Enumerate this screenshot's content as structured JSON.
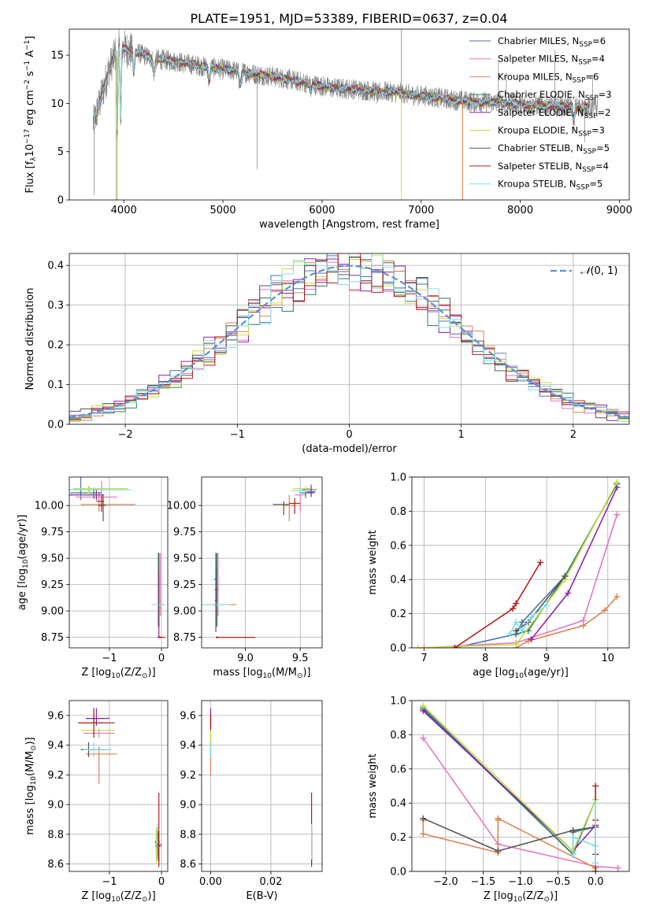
{
  "figure": {
    "title": "PLATE=1951, MJD=53389, FIBERID=0637, z=0.04"
  },
  "series": [
    {
      "name": "Chabrier MILES",
      "nssp": "6",
      "color": "#4c72b0"
    },
    {
      "name": "Salpeter MILES",
      "nssp": "4",
      "color": "#e377c2"
    },
    {
      "name": "Kroupa MILES",
      "nssp": "6",
      "color": "#dd8452"
    },
    {
      "name": "Chabrier ELODIE",
      "nssp": "3",
      "color": "#2e7d6b"
    },
    {
      "name": "Salpeter ELODIE",
      "nssp": "2",
      "color": "#8e24aa"
    },
    {
      "name": "Kroupa ELODIE",
      "nssp": "3",
      "color": "#c6e03c"
    },
    {
      "name": "Chabrier STELIB",
      "nssp": "5",
      "color": "#555555"
    },
    {
      "name": "Salpeter STELIB",
      "nssp": "4",
      "color": "#b71c1c"
    },
    {
      "name": "Kroupa STELIB",
      "nssp": "5",
      "color": "#80deea"
    }
  ],
  "chart_data": [
    {
      "id": "spectrum",
      "type": "line",
      "xlabel": "wavelength [Angstrom, rest frame]",
      "ylabel_parts": [
        "Flux [f",
        "λ",
        "10",
        "−17",
        " erg cm",
        "−2",
        " s",
        "−1",
        " A",
        "−1",
        "]"
      ],
      "xlim": [
        3450,
        9100
      ],
      "ylim": [
        0,
        17.7
      ],
      "xticks": [
        4000,
        5000,
        6000,
        7000,
        8000,
        9000
      ],
      "yticks": [
        0,
        5,
        10,
        15
      ],
      "legend_suffix_pre": ", N",
      "legend_suffix_sub": "SSP",
      "legend_suffix_eq": "=",
      "data_color": "#808080",
      "continuum": {
        "x": [
          3700,
          3850,
          3950,
          4050,
          4150,
          4300,
          4500,
          4700,
          4900,
          5100,
          5300,
          5500,
          5700,
          5900,
          6100,
          6300,
          6500,
          6700,
          6900,
          7100,
          7300,
          7500,
          7700,
          7900,
          8100,
          8300,
          8500,
          8700
        ],
        "y": [
          8.0,
          13.5,
          16.0,
          15.5,
          15.2,
          14.6,
          14.4,
          14.0,
          13.7,
          13.4,
          13.1,
          12.8,
          12.4,
          12.0,
          11.6,
          11.5,
          11.3,
          11.2,
          10.9,
          10.7,
          10.4,
          10.2,
          10.1,
          10.0,
          9.8,
          9.8,
          9.6,
          9.6
        ]
      },
      "model_range": [
        3700,
        8700
      ],
      "model_dips": [
        [
          3934,
          0.55,
          8
        ],
        [
          3969,
          0.5,
          8
        ],
        [
          4101,
          0.15,
          10
        ],
        [
          4305,
          0.1,
          12
        ],
        [
          4861,
          0.12,
          10
        ],
        [
          5175,
          0.1,
          15
        ],
        [
          5890,
          0.06,
          10
        ],
        [
          6563,
          0.05,
          10
        ],
        [
          8542,
          0.15,
          10
        ]
      ],
      "spikes": [
        [
          3700,
          0.5
        ],
        [
          3930,
          0.0
        ],
        [
          4345,
          15.2
        ],
        [
          5345,
          3.2
        ],
        [
          6800,
          18
        ],
        [
          7780,
          14.5
        ],
        [
          7860,
          13.2
        ],
        [
          8350,
          15.5
        ],
        [
          8650,
          6.0
        ],
        [
          8730,
          13.0
        ]
      ],
      "fit_drops": [
        [
          3920,
          0,
          "#c6e03c"
        ],
        [
          6800,
          0,
          "#c6e03c"
        ],
        [
          7420,
          0,
          "#dd8452"
        ]
      ]
    },
    {
      "id": "residuals",
      "type": "histogram",
      "xlabel": "(data-model)/error",
      "ylabel": "Normed distribution",
      "xlim": [
        -2.5,
        2.5
      ],
      "ylim": [
        0,
        0.43
      ],
      "xticks": [
        -2,
        -1,
        0,
        1,
        2
      ],
      "yticks": [
        0.0,
        0.1,
        0.2,
        0.3,
        0.4
      ],
      "bin_width": 0.1,
      "reference": {
        "name_pre": "𝒩",
        "name_post": "(0, 1)",
        "color": "#5b8fd9"
      }
    },
    {
      "id": "age-vs-z",
      "type": "scatter",
      "xlabel_pre": "Z [log",
      "xlabel_sub": "10",
      "xlabel_post": "(Z/Z",
      "xlabel_sub2": "⊙",
      "xlabel_end": ")]",
      "ylabel_pre": "age  [log",
      "ylabel_sub": "10",
      "ylabel_post": "(age/yr)]",
      "xlim": [
        -1.77,
        0.12
      ],
      "ylim": [
        8.65,
        10.27
      ],
      "xticks": [
        -1,
        0
      ],
      "yticks": [
        8.75,
        9.0,
        9.25,
        9.5,
        9.75,
        10.0
      ],
      "points": [
        [
          -1.55,
          10.15,
          0.2,
          0.8,
          0.1,
          0.15
        ],
        [
          -1.15,
          10.08,
          0.5,
          0.3,
          0.1,
          0.15
        ],
        [
          -1.2,
          10.01,
          0.35,
          0.7,
          0.07,
          0.12
        ],
        [
          -1.3,
          10.12,
          0.45,
          0.15,
          0.06,
          0.05
        ],
        [
          -1.25,
          10.1,
          0.6,
          0.15,
          0.05,
          0.05
        ],
        [
          -1.4,
          10.16,
          0.3,
          0.75,
          0.05,
          0.03
        ],
        [
          -1.12,
          10.0,
          0.1,
          0.05,
          0.15,
          0.1
        ],
        [
          -1.15,
          10.04,
          0.1,
          0.05,
          0.1,
          0.05
        ],
        [
          -1.38,
          10.15,
          0.4,
          0.8,
          0.04,
          0.03
        ],
        [
          -0.05,
          9.3,
          0.01,
          0.01,
          0.25,
          0.25
        ],
        [
          -0.02,
          9.25,
          0.01,
          0.01,
          0.3,
          0.3
        ],
        [
          -0.05,
          9.06,
          0.01,
          0.1,
          0.2,
          0.2
        ],
        [
          -0.05,
          9.2,
          0.01,
          0.01,
          0.35,
          0.35
        ],
        [
          -0.05,
          9.05,
          0.01,
          0.01,
          0.3,
          0.3
        ],
        [
          0.0,
          9.06,
          0.01,
          0.01,
          0.1,
          0.1
        ],
        [
          -0.06,
          9.2,
          0.01,
          0.01,
          0.35,
          0.35
        ],
        [
          -0.03,
          8.75,
          0.05,
          0.1,
          0.01,
          0.01
        ],
        [
          -0.03,
          9.06,
          0.15,
          0.1,
          0.01,
          0.01
        ]
      ]
    },
    {
      "id": "age-vs-mass",
      "type": "scatter",
      "xlabel_pre": "mass [log",
      "xlabel_sub": "10",
      "xlabel_post": "(M/M",
      "xlabel_sub2": "⊙",
      "xlabel_end": ")]",
      "xlim": [
        8.6,
        9.7
      ],
      "ylim": [
        8.65,
        10.27
      ],
      "xticks": [
        9.0,
        9.5
      ],
      "yticks": [
        8.75,
        9.0,
        9.25,
        9.5,
        9.75,
        10.0
      ],
      "points": [
        [
          9.6,
          10.15,
          0.08,
          0.05,
          0.05,
          0.05
        ],
        [
          9.5,
          10.1,
          0.05,
          0.05,
          0.15,
          0.05
        ],
        [
          9.4,
          10.0,
          0.05,
          0.05,
          0.15,
          0.1
        ],
        [
          9.55,
          10.12,
          0.05,
          0.08,
          0.05,
          0.03
        ],
        [
          9.6,
          10.13,
          0.04,
          0.04,
          0.05,
          0.05
        ],
        [
          9.55,
          10.16,
          0.12,
          0.05,
          0.03,
          0.03
        ],
        [
          9.35,
          10.01,
          0.1,
          0.05,
          0.1,
          0.03
        ],
        [
          9.45,
          10.02,
          0.05,
          0.05,
          0.1,
          0.05
        ],
        [
          9.5,
          10.14,
          0.08,
          0.05,
          0.04,
          0.03
        ],
        [
          8.73,
          9.3,
          0.02,
          0.02,
          0.25,
          0.25
        ],
        [
          8.75,
          9.25,
          0.01,
          0.01,
          0.3,
          0.3
        ],
        [
          8.72,
          9.06,
          0.1,
          0.2,
          0.01,
          0.01
        ],
        [
          8.74,
          9.2,
          0.01,
          0.01,
          0.35,
          0.35
        ],
        [
          8.73,
          9.1,
          0.01,
          0.01,
          0.3,
          0.3
        ],
        [
          8.74,
          8.75,
          0.01,
          0.35,
          0.01,
          0.01
        ],
        [
          8.73,
          9.2,
          0.01,
          0.01,
          0.35,
          0.35
        ],
        [
          8.74,
          8.75,
          0.01,
          0.35,
          0.01,
          0.01
        ],
        [
          8.75,
          9.06,
          0.15,
          0.1,
          0.01,
          0.01
        ]
      ]
    },
    {
      "id": "weight-vs-age",
      "type": "line",
      "xlabel_pre": "age  [log",
      "xlabel_sub": "10",
      "xlabel_post": "(age/yr)]",
      "ylabel": "mass weight",
      "xlim": [
        6.8,
        10.35
      ],
      "ylim": [
        0,
        1.0
      ],
      "xticks": [
        7,
        8,
        9,
        10
      ],
      "yticks": [
        0.0,
        0.2,
        0.4,
        0.6,
        0.8,
        1.0
      ],
      "lines": [
        {
          "x": [
            7.5,
            8.5,
            8.6,
            9.3,
            10.15
          ],
          "y": [
            0.0,
            0.08,
            0.15,
            0.42,
            0.96
          ]
        },
        {
          "x": [
            7.0,
            8.5,
            9.6,
            10.15
          ],
          "y": [
            0.0,
            0.03,
            0.16,
            0.78
          ]
        },
        {
          "x": [
            8.5,
            8.7,
            9.6,
            9.95,
            10.15
          ],
          "y": [
            0.0,
            0.04,
            0.13,
            0.22,
            0.3
          ]
        },
        {
          "x": [
            8.5,
            8.7,
            9.3,
            10.15
          ],
          "y": [
            0.08,
            0.1,
            0.42,
            0.96
          ]
        },
        {
          "x": [
            8.75,
            9.35,
            10.15
          ],
          "y": [
            0.05,
            0.32,
            0.94
          ]
        },
        {
          "x": [
            6.9,
            8.5,
            9.3,
            10.15
          ],
          "y": [
            0.0,
            0.02,
            0.4,
            0.97
          ]
        },
        {
          "x": [
            8.5,
            8.7,
            9.3
          ],
          "y": [
            0.1,
            0.15,
            0.42
          ]
        },
        {
          "x": [
            7.5,
            8.45,
            8.5,
            8.9
          ],
          "y": [
            0.0,
            0.23,
            0.26,
            0.5
          ]
        },
        {
          "x": [
            8.4,
            8.5,
            8.6,
            8.75,
            9.0
          ],
          "y": [
            0.08,
            0.15,
            0.1,
            0.18,
            0.25
          ]
        }
      ]
    },
    {
      "id": "mass-vs-z",
      "type": "scatter",
      "xlabel_pre": "Z [log",
      "xlabel_sub": "10",
      "xlabel_post": "(Z/Z",
      "xlabel_sub2": "⊙",
      "xlabel_end": ")]",
      "ylabel_pre": "mass [log",
      "ylabel_sub": "10",
      "ylabel_post": "(M/M",
      "ylabel_sub2": "⊙",
      "ylabel_end": ")]",
      "xlim": [
        -1.77,
        0.12
      ],
      "ylim": [
        8.55,
        9.7
      ],
      "xticks": [
        -1,
        0
      ],
      "yticks": [
        8.6,
        8.8,
        9.0,
        9.2,
        9.4,
        9.6
      ],
      "points": [
        [
          -1.3,
          9.58,
          0.15,
          0.2,
          0.03,
          0.03
        ],
        [
          -1.2,
          9.48,
          0.3,
          0.3,
          0.03,
          0.03
        ],
        [
          -1.2,
          9.34,
          0.25,
          0.35,
          0.2,
          0.05
        ],
        [
          -1.3,
          9.55,
          0.3,
          0.25,
          0.1,
          0.1
        ],
        [
          -1.25,
          9.58,
          0.2,
          0.25,
          0.05,
          0.07
        ],
        [
          -1.3,
          9.5,
          0.25,
          0.4,
          0.05,
          0.04
        ],
        [
          -1.4,
          9.37,
          0.15,
          0.35,
          0.05,
          0.05
        ],
        [
          -1.3,
          9.55,
          0.3,
          0.4,
          0.1,
          0.1
        ],
        [
          -1.3,
          9.37,
          0.2,
          0.35,
          0.05,
          0.05
        ],
        [
          -0.05,
          8.72,
          0.02,
          0.02,
          0.1,
          0.1
        ],
        [
          -0.1,
          8.75,
          0.02,
          0.02,
          0.05,
          0.05
        ],
        [
          -0.08,
          8.72,
          0.05,
          0.05,
          0.02,
          0.02
        ],
        [
          -0.1,
          8.74,
          0.02,
          0.02,
          0.05,
          0.05
        ],
        [
          -0.08,
          8.75,
          0.05,
          0.05,
          0.1,
          0.1
        ],
        [
          -0.1,
          8.72,
          0.03,
          0.03,
          0.12,
          0.12
        ],
        [
          -0.06,
          8.72,
          0.05,
          0.05,
          0.1,
          0.1
        ],
        [
          -0.05,
          8.73,
          0.05,
          0.05,
          0.15,
          0.35
        ],
        [
          -0.08,
          8.75,
          0.02,
          0.02,
          0.12,
          0.12
        ]
      ]
    },
    {
      "id": "mass-vs-ebv",
      "type": "scatter",
      "xlabel": "E(B-V)",
      "xlim": [
        -0.003,
        0.037
      ],
      "ylim": [
        8.55,
        9.7
      ],
      "xticks": [
        0.0,
        0.02
      ],
      "yticks": [
        8.6,
        8.8,
        9.0,
        9.2,
        9.4,
        9.6
      ],
      "points": [
        [
          0.0,
          9.58,
          0,
          0,
          0.05,
          0.05
        ],
        [
          0.0,
          9.48,
          0,
          0,
          0.1,
          0.1
        ],
        [
          0.0,
          9.34,
          0,
          0,
          0.15,
          0.15
        ],
        [
          0.0,
          9.55,
          0,
          0,
          0.05,
          0.05
        ],
        [
          0.0,
          9.6,
          0,
          0,
          0.05,
          0.05
        ],
        [
          0.0,
          9.5,
          0,
          0,
          0.1,
          0.1
        ],
        [
          0.0,
          9.37,
          0,
          0,
          0.05,
          0.05
        ],
        [
          0.0,
          9.55,
          0,
          0,
          0.05,
          0.05
        ],
        [
          0.0,
          9.37,
          0,
          0,
          0.05,
          0.05
        ],
        [
          0.0335,
          8.72,
          0,
          0,
          0.1,
          0.1
        ],
        [
          0.0335,
          8.75,
          0,
          0,
          0.05,
          0.05
        ],
        [
          0.0335,
          8.72,
          0,
          0,
          0.05,
          0.05
        ],
        [
          0.0335,
          8.74,
          0,
          0,
          0.05,
          0.05
        ],
        [
          0.0335,
          8.75,
          0,
          0,
          0.1,
          0.1
        ],
        [
          0.0335,
          8.72,
          0,
          0,
          0.12,
          0.12
        ],
        [
          0.0335,
          8.72,
          0,
          0,
          0.1,
          0.1
        ],
        [
          0.0335,
          8.73,
          0,
          0,
          0.15,
          0.35
        ],
        [
          0.0335,
          8.75,
          0,
          0,
          0.12,
          0.12
        ]
      ]
    },
    {
      "id": "weight-vs-z",
      "type": "line",
      "xlabel_pre": "Z [log",
      "xlabel_sub": "10",
      "xlabel_post": "(Z/Z",
      "xlabel_sub2": "⊙",
      "xlabel_end": ")]",
      "ylabel": "mass weight",
      "xlim": [
        -2.45,
        0.45
      ],
      "ylim": [
        0,
        1.0
      ],
      "xticks": [
        -2.0,
        -1.5,
        -1.0,
        -0.5,
        0.0
      ],
      "yticks": [
        0.0,
        0.2,
        0.4,
        0.6,
        0.8,
        1.0
      ],
      "lines": [
        {
          "x": [
            -2.3,
            -0.3,
            0.0
          ],
          "y": [
            0.96,
            0.1,
            0.42
          ]
        },
        {
          "x": [
            -2.3,
            -1.3,
            0.0,
            0.3
          ],
          "y": [
            0.78,
            0.16,
            0.03,
            0.02
          ]
        },
        {
          "x": [
            -2.3,
            -2.3,
            -1.3,
            -1.3,
            -1.3,
            0.0,
            0.0
          ],
          "y": [
            0.3,
            0.22,
            0.11,
            0.3,
            0.31,
            0.02,
            0.0
          ]
        },
        {
          "x": [
            -2.3,
            -0.3,
            -0.3,
            0.0
          ],
          "y": [
            0.95,
            0.1,
            0.23,
            0.26
          ]
        },
        {
          "x": [
            -2.3,
            -0.3,
            0.0
          ],
          "y": [
            0.94,
            0.12,
            0.27
          ]
        },
        {
          "x": [
            -2.3,
            -0.3,
            0.0
          ],
          "y": [
            0.97,
            0.12,
            0.42
          ]
        },
        {
          "x": [
            -2.3,
            -1.3,
            -0.3,
            0.0,
            0.0
          ],
          "y": [
            0.31,
            0.12,
            0.24,
            0.26,
            0.1
          ]
        },
        {
          "x": [
            0.0,
            0.0,
            0.0
          ],
          "y": [
            0.5,
            0.3,
            0.0
          ]
        },
        {
          "x": [
            -0.3,
            -0.3,
            0.0,
            0.0,
            0.0
          ],
          "y": [
            0.1,
            0.2,
            0.15,
            0.4,
            0.05
          ]
        }
      ]
    }
  ]
}
